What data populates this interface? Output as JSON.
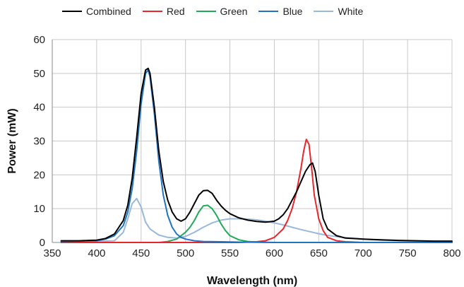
{
  "chart_data": {
    "type": "line",
    "title": "",
    "xlabel": "Wavelength (nm)",
    "ylabel": "Power (mW)",
    "xlim": [
      350,
      800
    ],
    "ylim": [
      0,
      60
    ],
    "x_ticks": [
      350,
      400,
      450,
      500,
      550,
      600,
      650,
      700,
      750,
      800
    ],
    "y_ticks": [
      0,
      10,
      20,
      30,
      40,
      50,
      60
    ],
    "grid": true,
    "legend_position": "top",
    "series": [
      {
        "name": "Combined",
        "color": "#000000",
        "x": [
          360,
          380,
          400,
          410,
          420,
          430,
          435,
          440,
          445,
          450,
          455,
          458,
          460,
          465,
          470,
          475,
          480,
          485,
          490,
          495,
          500,
          505,
          510,
          515,
          520,
          525,
          530,
          535,
          540,
          545,
          550,
          560,
          570,
          580,
          590,
          600,
          605,
          610,
          615,
          620,
          625,
          630,
          635,
          640,
          643,
          646,
          650,
          655,
          660,
          670,
          680,
          700,
          720,
          740,
          760,
          780,
          800
        ],
        "y": [
          0.5,
          0.5,
          0.7,
          1.2,
          2.5,
          6.5,
          11,
          19,
          31,
          44,
          51,
          51.5,
          50,
          40,
          27,
          18,
          12.5,
          9,
          7,
          6.3,
          7,
          9,
          11.5,
          14,
          15.3,
          15.4,
          14.5,
          12.5,
          10.8,
          9.5,
          8.5,
          7.3,
          6.6,
          6.2,
          6,
          6.3,
          7,
          8.2,
          10,
          12.5,
          15,
          18,
          21,
          23,
          23.5,
          21,
          14,
          7,
          4,
          2,
          1.3,
          1,
          0.8,
          0.6,
          0.5,
          0.4,
          0.4
        ]
      },
      {
        "name": "Red",
        "color": "#e8262b",
        "x": [
          360,
          560,
          580,
          590,
          600,
          610,
          615,
          620,
          625,
          630,
          633,
          636,
          639,
          642,
          645,
          650,
          655,
          660,
          670,
          680,
          700,
          800
        ],
        "y": [
          0,
          0,
          0.2,
          0.5,
          1.5,
          4,
          6.5,
          10,
          15,
          22,
          27,
          30.5,
          29,
          22,
          14,
          7,
          3.5,
          1.5,
          0.5,
          0.2,
          0,
          0
        ]
      },
      {
        "name": "Green",
        "color": "#22a95a",
        "x": [
          360,
          470,
          480,
          490,
          500,
          505,
          510,
          515,
          520,
          525,
          530,
          535,
          540,
          545,
          550,
          560,
          570,
          580,
          600,
          800
        ],
        "y": [
          0,
          0,
          0.3,
          1,
          3,
          4.5,
          6.5,
          9,
          10.8,
          11,
          10,
          8,
          5.5,
          3.5,
          2,
          0.8,
          0.3,
          0.1,
          0,
          0
        ]
      },
      {
        "name": "Blue",
        "color": "#1e74c0",
        "x": [
          360,
          400,
          410,
          420,
          430,
          435,
          440,
          445,
          450,
          455,
          458,
          460,
          465,
          470,
          475,
          480,
          485,
          490,
          495,
          500,
          510,
          520,
          540,
          560,
          600,
          800
        ],
        "y": [
          0.3,
          0.5,
          1,
          2,
          5,
          9,
          16,
          27,
          41,
          50,
          51,
          49,
          38,
          24,
          14,
          8,
          4.5,
          2.5,
          1.5,
          1,
          0.5,
          0.3,
          0.2,
          0.1,
          0,
          0
        ]
      },
      {
        "name": "White",
        "color": "#9ab8d8",
        "x": [
          360,
          420,
          430,
          435,
          440,
          445,
          450,
          455,
          460,
          470,
          480,
          490,
          500,
          510,
          520,
          530,
          540,
          550,
          560,
          570,
          580,
          590,
          600,
          610,
          620,
          630,
          640,
          650,
          660,
          680,
          700,
          720,
          740,
          760,
          780,
          800
        ],
        "y": [
          0,
          0.5,
          3,
          7,
          11.5,
          13,
          10.5,
          6,
          4,
          2.2,
          1.5,
          1.3,
          1.8,
          3,
          4.5,
          5.8,
          6.6,
          7,
          7,
          6.9,
          6.7,
          6.3,
          5.8,
          5.2,
          4.5,
          3.8,
          3.2,
          2.6,
          2.1,
          1.4,
          1,
          0.7,
          0.5,
          0.4,
          0.3,
          0.2
        ]
      }
    ]
  }
}
